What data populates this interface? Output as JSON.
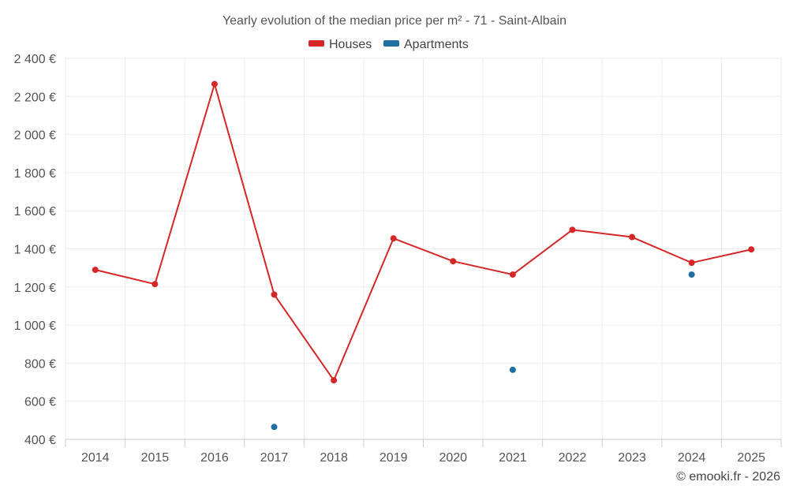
{
  "chart_data": {
    "type": "line",
    "title": "Yearly evolution of the median price per m² - 71 - Saint-Albain",
    "categories": [
      "2014",
      "2015",
      "2016",
      "2017",
      "2018",
      "2019",
      "2020",
      "2021",
      "2022",
      "2023",
      "2024",
      "2025"
    ],
    "series": [
      {
        "name": "Houses",
        "color": "#d62728",
        "values": [
          1290,
          1215,
          2265,
          1160,
          710,
          1455,
          1335,
          1265,
          1500,
          1462,
          1327,
          1397
        ]
      },
      {
        "name": "Apartments",
        "color": "#1f6fa5",
        "values": [
          null,
          null,
          null,
          465,
          null,
          null,
          null,
          765,
          null,
          null,
          1265,
          null
        ]
      }
    ],
    "ylim": [
      400,
      2400
    ],
    "yticks": [
      400,
      600,
      800,
      1000,
      1200,
      1400,
      1600,
      1800,
      2000,
      2200,
      2400
    ],
    "ytick_labels": [
      "400 €",
      "600 €",
      "800 €",
      "1 000 €",
      "1 200 €",
      "1 400 €",
      "1 600 €",
      "1 800 €",
      "2 000 €",
      "2 200 €",
      "2 400 €"
    ],
    "legend_position": "top-center",
    "grid": true
  },
  "credit": "© emooki.fr - 2026"
}
